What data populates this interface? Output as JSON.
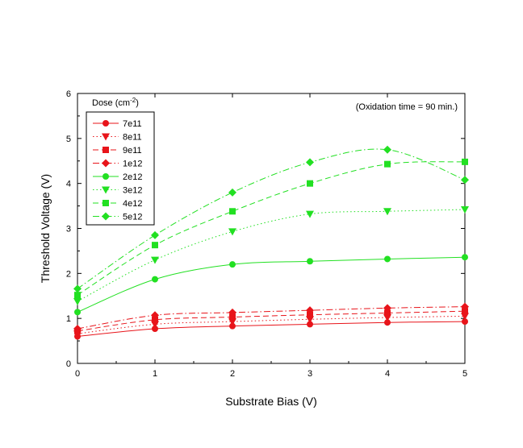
{
  "chart_data": {
    "type": "line",
    "xlabel": "Substrate Bias (V)",
    "ylabel": "Threshold Voltage (V)",
    "xlim": [
      0,
      5
    ],
    "ylim": [
      0,
      6
    ],
    "xticks": [
      "0",
      "1",
      "2",
      "3",
      "4",
      "5"
    ],
    "yticks": [
      "0",
      "1",
      "2",
      "3",
      "4",
      "5",
      "6"
    ],
    "annotation": "(Oxidation time = 90 min.)",
    "legend": {
      "title_main": "Dose (cm",
      "title_sup": "-2",
      "title_end": ")",
      "placement": "top-left"
    },
    "grid": false,
    "x": [
      0,
      1,
      2,
      3,
      4,
      5
    ],
    "series": [
      {
        "name": "7e11",
        "color": "#e8141a",
        "marker": "circle",
        "dash": "solid",
        "values": [
          0.6,
          0.77,
          0.83,
          0.87,
          0.91,
          0.93
        ]
      },
      {
        "name": "8e11",
        "color": "#e8141a",
        "marker": "triangle-down",
        "dash": "dot",
        "values": [
          0.66,
          0.87,
          0.93,
          0.98,
          1.02,
          1.05
        ]
      },
      {
        "name": "9e11",
        "color": "#e8141a",
        "marker": "square",
        "dash": "dash",
        "values": [
          0.72,
          0.97,
          1.03,
          1.08,
          1.12,
          1.16
        ]
      },
      {
        "name": "1e12",
        "color": "#e8141a",
        "marker": "diamond",
        "dash": "dashdot",
        "values": [
          0.77,
          1.07,
          1.13,
          1.18,
          1.23,
          1.26
        ]
      },
      {
        "name": "2e12",
        "color": "#22e022",
        "marker": "circle",
        "dash": "solid",
        "values": [
          1.14,
          1.87,
          2.2,
          2.27,
          2.32,
          2.36
        ]
      },
      {
        "name": "3e12",
        "color": "#22e022",
        "marker": "triangle-down",
        "dash": "dot",
        "values": [
          1.38,
          2.3,
          2.93,
          3.32,
          3.38,
          3.42
        ]
      },
      {
        "name": "4e12",
        "color": "#22e022",
        "marker": "square",
        "dash": "dash",
        "values": [
          1.52,
          2.63,
          3.38,
          4.0,
          4.43,
          4.48
        ]
      },
      {
        "name": "5e12",
        "color": "#22e022",
        "marker": "diamond",
        "dash": "dashdot",
        "values": [
          1.66,
          2.85,
          3.8,
          4.47,
          4.75,
          4.08
        ]
      }
    ]
  }
}
